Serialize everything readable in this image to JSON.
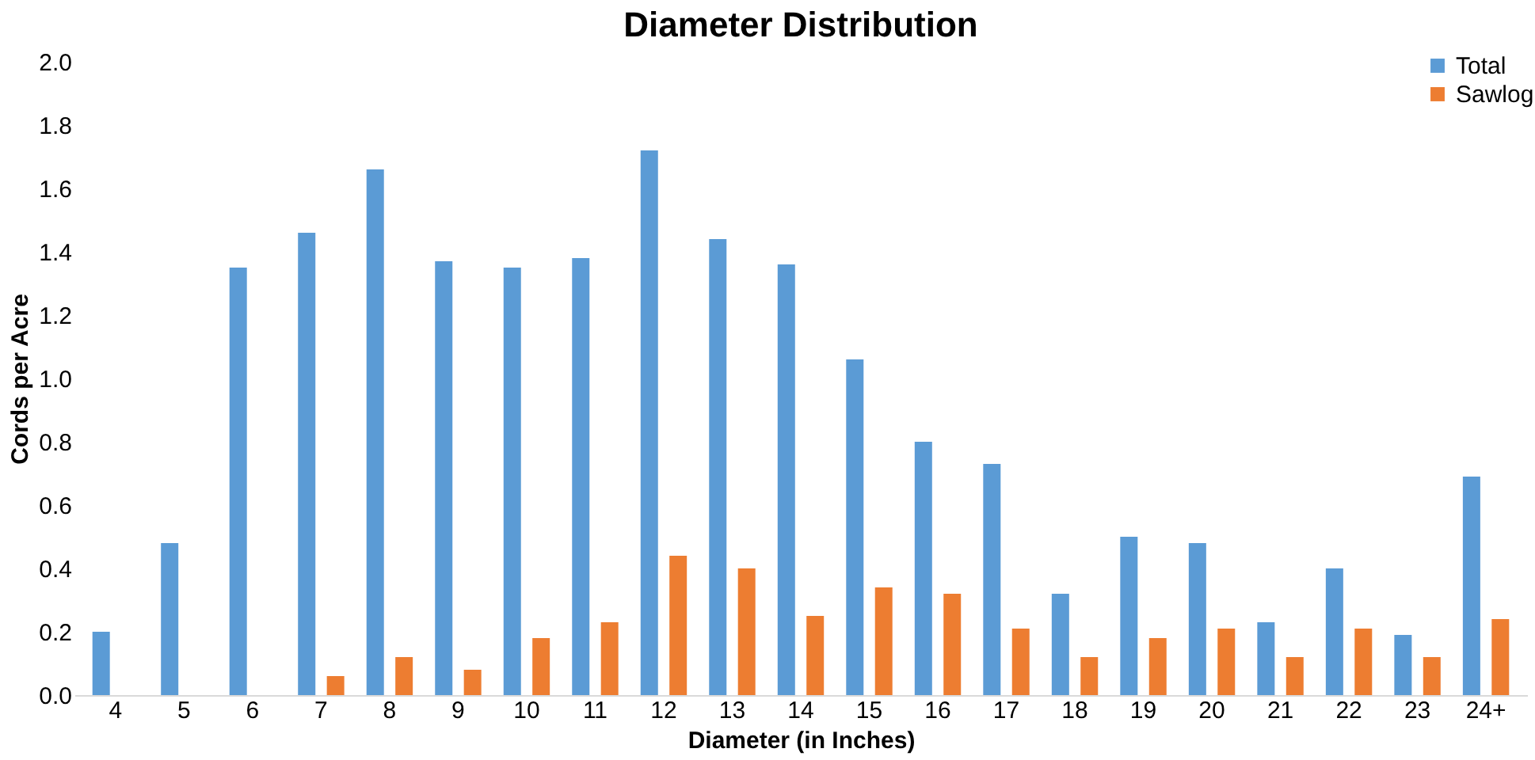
{
  "chart_data": {
    "type": "bar",
    "title": "Diameter Distribution",
    "xlabel": "Diameter (in Inches)",
    "ylabel": "Cords per Acre",
    "categories": [
      "4",
      "5",
      "6",
      "7",
      "8",
      "9",
      "10",
      "11",
      "12",
      "13",
      "14",
      "15",
      "16",
      "17",
      "18",
      "19",
      "20",
      "21",
      "22",
      "23",
      "24+"
    ],
    "series": [
      {
        "name": "Total",
        "color": "#5b9bd5",
        "values": [
          0.2,
          0.48,
          1.35,
          1.46,
          1.66,
          1.37,
          1.35,
          1.38,
          1.72,
          1.44,
          1.36,
          1.06,
          0.8,
          0.73,
          0.32,
          0.5,
          0.48,
          0.23,
          0.4,
          0.19,
          0.69
        ]
      },
      {
        "name": "Sawlog",
        "color": "#ed7d31",
        "values": [
          0,
          0,
          0,
          0.06,
          0.12,
          0.08,
          0.18,
          0.23,
          0.44,
          0.4,
          0.25,
          0.34,
          0.32,
          0.21,
          0.12,
          0.18,
          0.21,
          0.12,
          0.21,
          0.12,
          0.24
        ]
      }
    ],
    "ylim": [
      0,
      2.0
    ],
    "yticks": [
      {
        "value": 0,
        "label": "0.0"
      },
      {
        "value": 0.2,
        "label": "0.2"
      },
      {
        "value": 0.4,
        "label": "0.4"
      },
      {
        "value": 0.6,
        "label": "0.6"
      },
      {
        "value": 0.8,
        "label": "0.8"
      },
      {
        "value": 1.0,
        "label": "1.0"
      },
      {
        "value": 1.2,
        "label": "1.2"
      },
      {
        "value": 1.4,
        "label": "1.4"
      },
      {
        "value": 1.6,
        "label": "1.6"
      },
      {
        "value": 1.8,
        "label": "1.8"
      },
      {
        "value": 2.0,
        "label": "2.0"
      }
    ],
    "grid": false,
    "legend": "top right"
  }
}
